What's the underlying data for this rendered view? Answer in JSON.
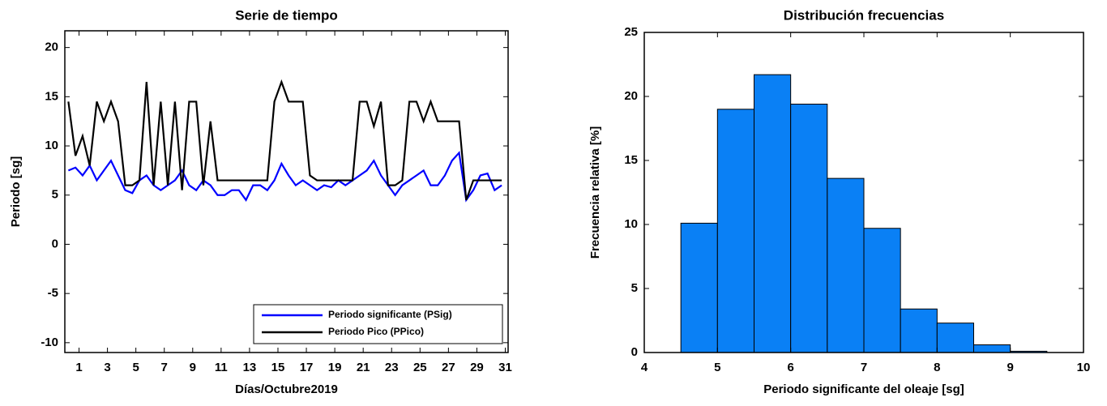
{
  "chart_data": [
    {
      "type": "line",
      "title": "Serie de tiempo",
      "xlabel": "Días/Octubre2019",
      "ylabel": "Periodo [sg]",
      "x": [
        0.25,
        0.75,
        1.25,
        1.75,
        2.25,
        2.75,
        3.25,
        3.75,
        4.25,
        4.75,
        5.25,
        5.75,
        6.25,
        6.75,
        7.25,
        7.75,
        8.25,
        8.75,
        9.25,
        9.75,
        10.25,
        10.75,
        11.25,
        11.75,
        12.25,
        12.75,
        13.25,
        13.75,
        14.25,
        14.75,
        15.25,
        15.75,
        16.25,
        16.75,
        17.25,
        17.75,
        18.25,
        18.75,
        19.25,
        19.75,
        20.25,
        20.75,
        21.25,
        21.75,
        22.25,
        22.75,
        23.25,
        23.75,
        24.25,
        24.75,
        25.25,
        25.75,
        26.25,
        26.75,
        27.25,
        27.75,
        28.25,
        28.75,
        29.25,
        29.75,
        30.25,
        30.75
      ],
      "series": [
        {
          "name": "Periodo significante (PSig)",
          "color": "#0000ff",
          "values": [
            7.5,
            7.8,
            7,
            8,
            6.5,
            7.5,
            8.5,
            7,
            5.5,
            5.2,
            6.5,
            7,
            6,
            5.5,
            6,
            6.5,
            7.5,
            6,
            5.5,
            6.5,
            6,
            5,
            5,
            5.5,
            5.5,
            4.5,
            6,
            6,
            5.5,
            6.5,
            8.2,
            7,
            6,
            6.5,
            6,
            5.5,
            6,
            5.8,
            6.5,
            6,
            6.5,
            7,
            7.5,
            8.5,
            7,
            6,
            5,
            6,
            6.5,
            7,
            7.5,
            6,
            6,
            7,
            8.5,
            9.3,
            4.5,
            5.5,
            7,
            7.2,
            5.5,
            6
          ]
        },
        {
          "name": "Periodo Pico (PPico)",
          "color": "#000000",
          "values": [
            14.5,
            9,
            11,
            8,
            14.5,
            12.5,
            14.5,
            12.5,
            6,
            6,
            6.5,
            16.5,
            6,
            14.5,
            6,
            14.5,
            5.5,
            14.5,
            14.5,
            6,
            12.5,
            6.5,
            6.5,
            6.5,
            6.5,
            6.5,
            6.5,
            6.5,
            6.5,
            14.5,
            16.5,
            14.5,
            14.5,
            14.5,
            7,
            6.5,
            6.5,
            6.5,
            6.5,
            6.5,
            6.5,
            14.5,
            14.5,
            12,
            14.5,
            6,
            6,
            6.5,
            14.5,
            14.5,
            12.5,
            14.5,
            12.5,
            12.5,
            12.5,
            12.5,
            4.5,
            6.5,
            6.5,
            6.5,
            6.5,
            6.5
          ]
        }
      ],
      "xlim": [
        0,
        31.2
      ],
      "ylim": [
        -11,
        21.7
      ],
      "xticks": [
        1,
        3,
        5,
        7,
        9,
        11,
        13,
        15,
        17,
        19,
        21,
        23,
        25,
        27,
        29,
        31
      ],
      "yticks": [
        -10,
        -5,
        0,
        5,
        10,
        15,
        20
      ],
      "legend": "lower right"
    },
    {
      "type": "histogram",
      "title": "Distribución frecuencias",
      "xlabel": "Periodo significante del oleaje [sg]",
      "ylabel": "Frecuencia relativa [%]",
      "bins": [
        4.5,
        5,
        5.5,
        6,
        6.5,
        7,
        7.5,
        8,
        8.5,
        9,
        9.5
      ],
      "values": [
        10.1,
        19,
        21.7,
        19.4,
        13.6,
        9.7,
        3.4,
        2.3,
        0.6,
        0.1
      ],
      "color": "#0a80f5",
      "xlim": [
        4,
        10
      ],
      "ylim": [
        0,
        25
      ],
      "xticks": [
        4,
        5,
        6,
        7,
        8,
        9,
        10
      ],
      "yticks": [
        0,
        5,
        10,
        15,
        20,
        25
      ]
    }
  ]
}
